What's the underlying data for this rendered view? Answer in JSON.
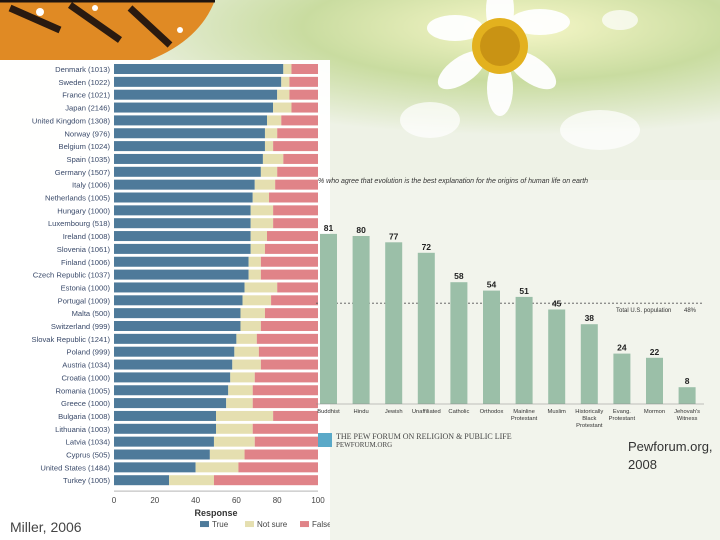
{
  "captions": {
    "left": "Miller, 2006",
    "right": "Pewforum.org, 2008"
  },
  "pew_logo": {
    "line1": "THE PEW FORUM ON RELIGION & PUBLIC LIFE",
    "line2": "PEWFORUM.ORG"
  },
  "colors": {
    "true": "#4e7a9a",
    "not_sure": "#e5dfb0",
    "false": "#e08388",
    "pew_bar": "#9bbfa8"
  },
  "chart_data": [
    {
      "type": "bar",
      "orientation": "horizontal",
      "stacked": true,
      "categories": [
        "Denmark (1013)",
        "Sweden (1022)",
        "France (1021)",
        "Japan (2146)",
        "United Kingdom (1308)",
        "Norway (976)",
        "Belgium (1024)",
        "Spain (1035)",
        "Germany (1507)",
        "Italy (1006)",
        "Netherlands (1005)",
        "Hungary (1000)",
        "Luxembourg (518)",
        "Ireland (1008)",
        "Slovenia (1061)",
        "Finland (1006)",
        "Czech Republic (1037)",
        "Estonia (1000)",
        "Portugal (1009)",
        "Malta (500)",
        "Switzerland (999)",
        "Slovak Republic (1241)",
        "Poland (999)",
        "Austria (1034)",
        "Croatia (1000)",
        "Romania (1005)",
        "Greece (1000)",
        "Bulgaria (1008)",
        "Lithuania (1003)",
        "Latvia (1034)",
        "Cyprus (505)",
        "United States (1484)",
        "Turkey (1005)"
      ],
      "series": [
        {
          "name": "True",
          "values": [
            83,
            82,
            80,
            78,
            75,
            74,
            74,
            73,
            72,
            69,
            68,
            67,
            67,
            67,
            67,
            66,
            66,
            64,
            63,
            62,
            62,
            60,
            59,
            58,
            57,
            56,
            55,
            50,
            50,
            49,
            47,
            40,
            27
          ]
        },
        {
          "name": "Not sure",
          "values": [
            4,
            4,
            6,
            9,
            7,
            6,
            4,
            10,
            8,
            10,
            8,
            11,
            11,
            8,
            7,
            6,
            6,
            16,
            14,
            12,
            10,
            10,
            12,
            14,
            12,
            12,
            13,
            28,
            18,
            20,
            17,
            21,
            22
          ]
        },
        {
          "name": "False",
          "values": [
            13,
            14,
            14,
            13,
            18,
            20,
            22,
            17,
            20,
            21,
            24,
            22,
            22,
            25,
            26,
            28,
            28,
            20,
            23,
            26,
            28,
            30,
            29,
            28,
            31,
            32,
            32,
            22,
            32,
            31,
            36,
            39,
            51
          ]
        }
      ],
      "xlabel": "Response",
      "xticks": [
        "0",
        "20",
        "40",
        "60",
        "80",
        "100"
      ],
      "xlim": [
        0,
        100
      ],
      "legend": [
        "True",
        "Not sure",
        "False"
      ],
      "legend_position": "bottom"
    },
    {
      "type": "bar",
      "title": "% who agree that evolution is the best explanation for the origins of human life on earth",
      "categories": [
        "Buddhist",
        "Hindu",
        "Jewish",
        "Unaffiliated",
        "Catholic",
        "Orthodox",
        "Mainline Protestant",
        "Muslim",
        "Historically Black Protestant",
        "Evang. Protestant",
        "Mormon",
        "Jehovah's Witness"
      ],
      "values": [
        81,
        80,
        77,
        72,
        58,
        54,
        51,
        45,
        38,
        24,
        22,
        8
      ],
      "ylim": [
        0,
        100
      ],
      "reference_line": {
        "label": "Total U.S. population",
        "value": 48,
        "value_label": "48%"
      }
    }
  ]
}
